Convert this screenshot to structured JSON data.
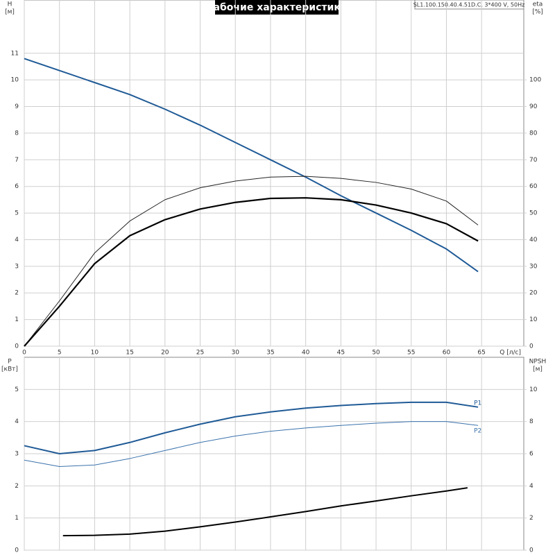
{
  "title": "Рабочие характеристики",
  "pump_label": "SL1.100.150.40.4.51D.C, 3*400 V, 50Hz",
  "chart_data": [
    {
      "type": "line",
      "ylabel": "H",
      "yunit": "[м]",
      "y2label": "eta",
      "y2unit": "[%]",
      "xlabel": "Q [л/с]",
      "xlim": [
        0,
        71
      ],
      "xticks": [
        0,
        5,
        10,
        15,
        20,
        25,
        30,
        35,
        40,
        45,
        50,
        55,
        60,
        65
      ],
      "ylim": [
        0,
        13
      ],
      "yticks": [
        0,
        1,
        2,
        3,
        4,
        5,
        6,
        7,
        8,
        9,
        10,
        11
      ],
      "y2lim": [
        0,
        130
      ],
      "y2ticks": [
        0,
        10,
        20,
        30,
        40,
        50,
        60,
        70,
        80,
        90,
        100
      ],
      "grid": true,
      "x": [
        0,
        5,
        10,
        15,
        20,
        25,
        30,
        35,
        40,
        45,
        50,
        55,
        60,
        64.5
      ],
      "series": [
        {
          "color": "#1f5a96",
          "width": 2,
          "values": [
            10.8,
            10.35,
            9.9,
            9.45,
            8.9,
            8.3,
            7.65,
            7.0,
            6.35,
            5.65,
            5.0,
            4.35,
            3.65,
            2.8
          ]
        },
        {
          "color": "#222222",
          "width": 1,
          "axis": "y2",
          "values": [
            0,
            17,
            35,
            47,
            55,
            59.5,
            62,
            63.5,
            63.8,
            63,
            61.5,
            59,
            54.5,
            45.5
          ]
        },
        {
          "color": "#000000",
          "width": 2.2,
          "axis": "y2",
          "values": [
            0,
            15,
            31,
            41.5,
            47.5,
            51.5,
            54,
            55.5,
            55.7,
            55,
            53,
            50,
            46,
            39.5
          ]
        }
      ]
    },
    {
      "type": "line",
      "ylabel": "P",
      "yunit": "[кВт]",
      "y2label": "NPSH",
      "y2unit": "[м]",
      "xlim": [
        0,
        71
      ],
      "ylim": [
        0,
        6
      ],
      "yticks": [
        0,
        1,
        2,
        3,
        4,
        5
      ],
      "y2lim": [
        0,
        12
      ],
      "y2ticks": [
        0,
        2,
        4,
        6,
        8,
        10
      ],
      "grid": true,
      "x": [
        0,
        5,
        10,
        15,
        20,
        25,
        30,
        35,
        40,
        45,
        50,
        55,
        60,
        64.5
      ],
      "series": [
        {
          "name": "P1",
          "color": "#1f5a96",
          "width": 2,
          "values": [
            3.25,
            3.0,
            3.1,
            3.35,
            3.65,
            3.92,
            4.15,
            4.3,
            4.42,
            4.5,
            4.56,
            4.6,
            4.6,
            4.45
          ]
        },
        {
          "name": "P2",
          "color": "#3a72ac",
          "width": 1,
          "values": [
            2.8,
            2.6,
            2.65,
            2.85,
            3.1,
            3.35,
            3.55,
            3.7,
            3.8,
            3.88,
            3.95,
            4.0,
            4.0,
            3.88
          ]
        },
        {
          "color": "#000000",
          "width": 2,
          "axis": "y2",
          "x": [
            5.5,
            10,
            15,
            20,
            25,
            30,
            35,
            40,
            45,
            50,
            55,
            60,
            63
          ],
          "values": [
            0.9,
            0.92,
            1.0,
            1.18,
            1.45,
            1.75,
            2.07,
            2.4,
            2.75,
            3.06,
            3.38,
            3.68,
            3.88
          ]
        }
      ]
    }
  ]
}
